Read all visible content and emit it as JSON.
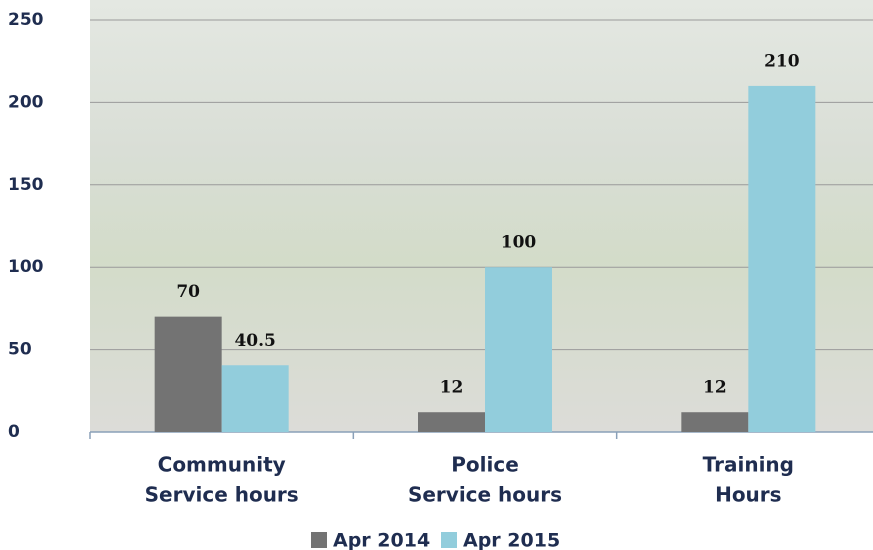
{
  "chart_data": {
    "type": "bar",
    "categories": [
      [
        "Community",
        "Service hours"
      ],
      [
        "Police",
        "Service hours"
      ],
      [
        "Training",
        "Hours"
      ]
    ],
    "series": [
      {
        "name": "Apr 2014",
        "color": "#737373",
        "values": [
          70,
          12,
          12
        ]
      },
      {
        "name": "Apr 2015",
        "color": "#92cddc",
        "values": [
          40.5,
          100,
          210
        ]
      }
    ],
    "ylim": [
      0,
      250
    ],
    "yticks": [
      0,
      50,
      100,
      150,
      200,
      250
    ],
    "grid": true,
    "legend": "bottom"
  }
}
